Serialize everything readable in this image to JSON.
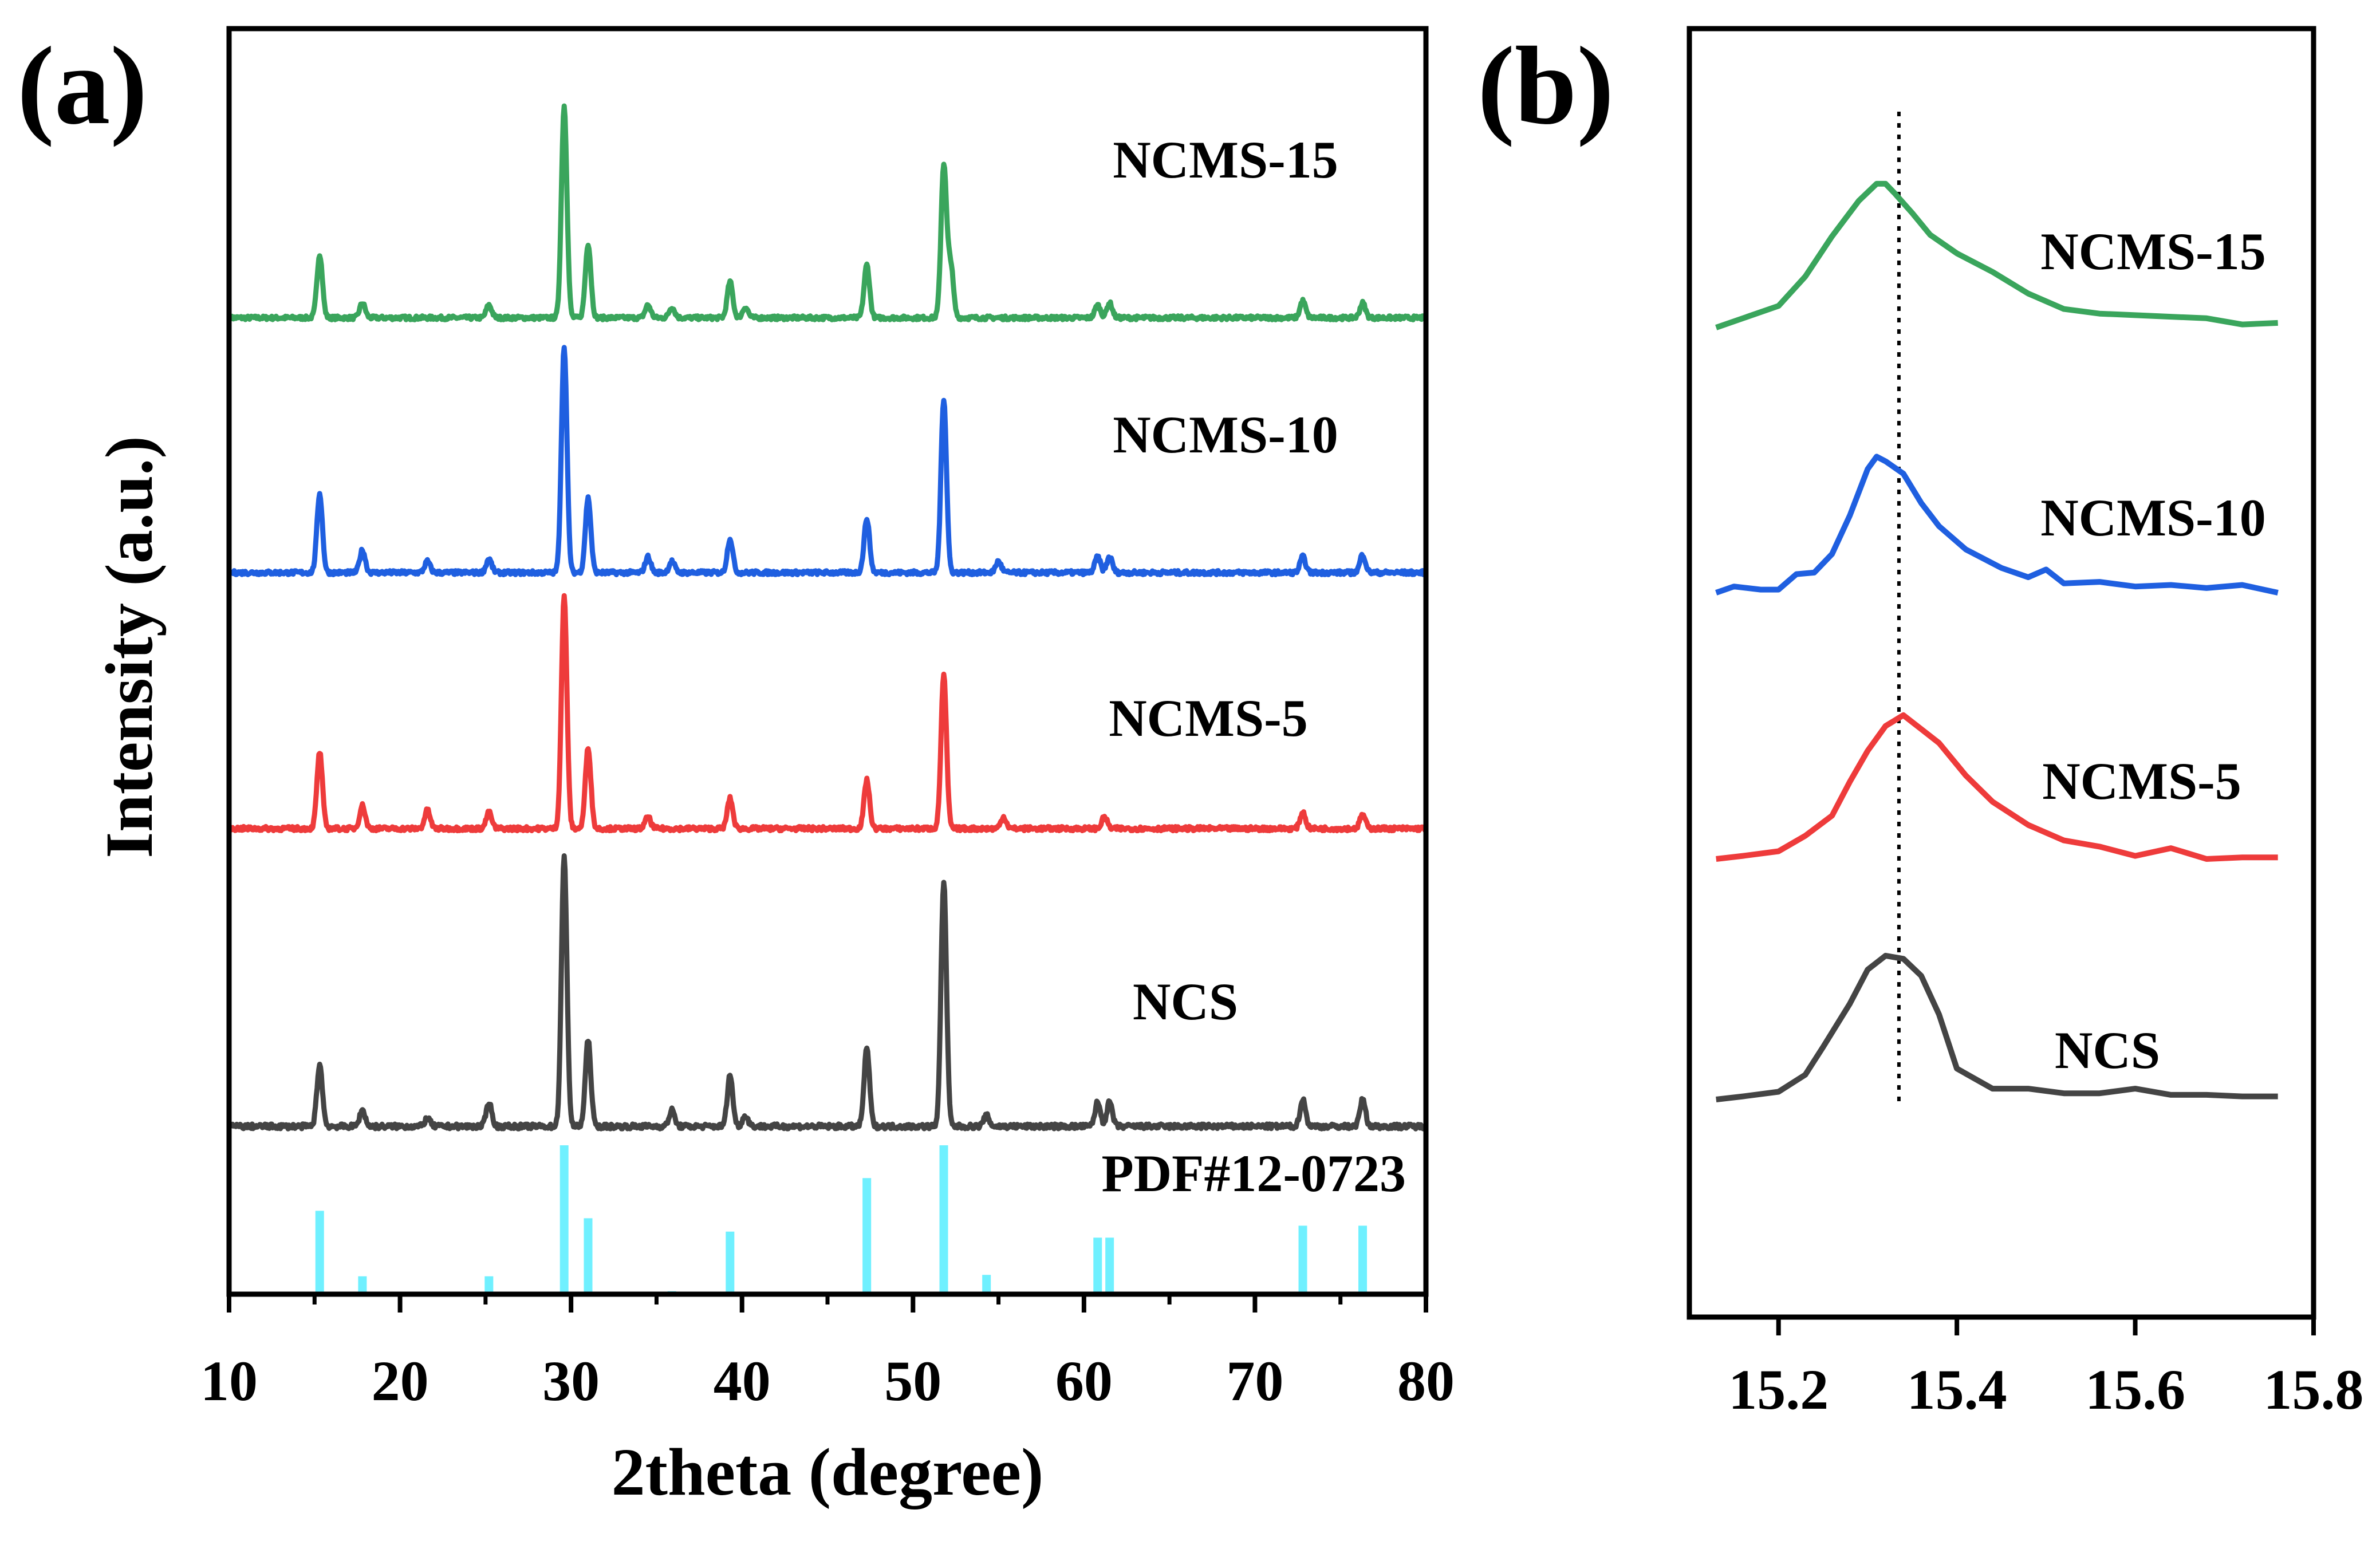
{
  "chart_data": [
    {
      "panel": "(a)",
      "type": "line",
      "xlabel": "2theta (degree)",
      "ylabel": "Intensity (a.u.)",
      "xlim": [
        10,
        80
      ],
      "xticks": [
        10,
        20,
        30,
        40,
        50,
        60,
        70,
        80
      ],
      "x_tick_labels": [
        "10",
        "20",
        "30",
        "40",
        "50",
        "60",
        "70",
        "80"
      ],
      "yticks_shown": false,
      "series": [
        {
          "name": "NCMS-15",
          "color": "#3aa55c",
          "peaks": [
            [
              15.3,
              0.3
            ],
            [
              17.8,
              0.07
            ],
            [
              25.2,
              0.06
            ],
            [
              29.6,
              1.0
            ],
            [
              31.0,
              0.35
            ],
            [
              34.5,
              0.06
            ],
            [
              35.9,
              0.05
            ],
            [
              39.3,
              0.17
            ],
            [
              40.2,
              0.05
            ],
            [
              47.3,
              0.25
            ],
            [
              51.8,
              0.72
            ],
            [
              52.2,
              0.25
            ],
            [
              60.8,
              0.06
            ],
            [
              61.5,
              0.07
            ],
            [
              72.8,
              0.08
            ],
            [
              76.3,
              0.07
            ]
          ]
        },
        {
          "name": "NCMS-10",
          "color": "#1f5fe0",
          "peaks": [
            [
              15.3,
              0.35
            ],
            [
              17.8,
              0.1
            ],
            [
              21.6,
              0.05
            ],
            [
              25.2,
              0.06
            ],
            [
              29.6,
              1.0
            ],
            [
              31.0,
              0.33
            ],
            [
              34.5,
              0.07
            ],
            [
              35.9,
              0.05
            ],
            [
              39.3,
              0.15
            ],
            [
              47.3,
              0.24
            ],
            [
              51.8,
              0.77
            ],
            [
              55.0,
              0.05
            ],
            [
              60.8,
              0.07
            ],
            [
              61.5,
              0.07
            ],
            [
              72.8,
              0.07
            ],
            [
              76.3,
              0.08
            ]
          ]
        },
        {
          "name": "NCMS-5",
          "color": "#ee3b3b",
          "peaks": [
            [
              15.3,
              0.33
            ],
            [
              17.8,
              0.1
            ],
            [
              21.6,
              0.08
            ],
            [
              25.2,
              0.07
            ],
            [
              29.6,
              1.0
            ],
            [
              31.0,
              0.35
            ],
            [
              34.5,
              0.05
            ],
            [
              39.3,
              0.13
            ],
            [
              47.3,
              0.21
            ],
            [
              51.8,
              0.66
            ],
            [
              55.3,
              0.05
            ],
            [
              61.2,
              0.05
            ],
            [
              72.8,
              0.07
            ],
            [
              76.3,
              0.06
            ]
          ]
        },
        {
          "name": "NCS",
          "color": "#444444",
          "peaks": [
            [
              15.3,
              0.23
            ],
            [
              17.8,
              0.06
            ],
            [
              21.6,
              0.03
            ],
            [
              25.2,
              0.09
            ],
            [
              29.6,
              1.0
            ],
            [
              31.0,
              0.32
            ],
            [
              35.9,
              0.06
            ],
            [
              39.3,
              0.19
            ],
            [
              40.2,
              0.04
            ],
            [
              47.3,
              0.29
            ],
            [
              51.8,
              0.91
            ],
            [
              54.3,
              0.04
            ],
            [
              60.8,
              0.09
            ],
            [
              61.5,
              0.09
            ],
            [
              72.8,
              0.1
            ],
            [
              76.3,
              0.1
            ]
          ]
        },
        {
          "name": "PDF#12-0723",
          "color": "#6ff0ff",
          "kind": "stick",
          "sticks": [
            [
              15.3,
              0.56
            ],
            [
              17.8,
              0.12
            ],
            [
              25.2,
              0.12
            ],
            [
              29.6,
              1.0
            ],
            [
              31.0,
              0.51
            ],
            [
              35.9,
              0.02
            ],
            [
              39.3,
              0.42
            ],
            [
              47.3,
              0.78
            ],
            [
              51.8,
              1.0
            ],
            [
              54.3,
              0.13
            ],
            [
              60.8,
              0.38
            ],
            [
              61.5,
              0.38
            ],
            [
              72.8,
              0.46
            ],
            [
              76.3,
              0.46
            ]
          ]
        }
      ]
    },
    {
      "panel": "(b)",
      "type": "line",
      "xlim": [
        15.1,
        15.8
      ],
      "xticks": [
        15.2,
        15.4,
        15.6,
        15.8
      ],
      "x_tick_labels": [
        "15.2",
        "15.4",
        "15.6",
        "15.8"
      ],
      "reference_line_x": 15.335,
      "series": [
        {
          "name": "NCMS-15",
          "color": "#3aa55c",
          "x": [
            15.13,
            15.16,
            15.2,
            15.23,
            15.26,
            15.29,
            15.31,
            15.32,
            15.33,
            15.35,
            15.37,
            15.4,
            15.44,
            15.48,
            15.52,
            15.56,
            15.6,
            15.64,
            15.68,
            15.72,
            15.76
          ],
          "y": [
            0.0,
            0.06,
            0.14,
            0.33,
            0.59,
            0.82,
            0.93,
            0.93,
            0.87,
            0.74,
            0.6,
            0.48,
            0.36,
            0.22,
            0.12,
            0.09,
            0.08,
            0.07,
            0.06,
            0.02,
            0.03
          ]
        },
        {
          "name": "NCMS-10",
          "color": "#1f5fe0",
          "x": [
            15.13,
            15.15,
            15.18,
            15.2,
            15.22,
            15.24,
            15.26,
            15.28,
            15.3,
            15.31,
            15.32,
            15.34,
            15.36,
            15.38,
            15.41,
            15.45,
            15.48,
            15.5,
            15.52,
            15.56,
            15.6,
            15.64,
            15.68,
            15.72,
            15.76
          ],
          "y": [
            0.0,
            0.04,
            0.02,
            0.02,
            0.12,
            0.13,
            0.25,
            0.5,
            0.8,
            0.88,
            0.85,
            0.77,
            0.58,
            0.43,
            0.28,
            0.16,
            0.1,
            0.15,
            0.06,
            0.07,
            0.04,
            0.05,
            0.03,
            0.05,
            0.0
          ]
        },
        {
          "name": "NCMS-5",
          "color": "#ee3b3b",
          "x": [
            15.13,
            15.16,
            15.2,
            15.23,
            15.26,
            15.28,
            15.3,
            15.32,
            15.34,
            15.36,
            15.38,
            15.41,
            15.44,
            15.48,
            15.52,
            15.56,
            15.6,
            15.64,
            15.68,
            15.72,
            15.76
          ],
          "y": [
            0.0,
            0.02,
            0.05,
            0.15,
            0.28,
            0.5,
            0.7,
            0.86,
            0.93,
            0.84,
            0.75,
            0.54,
            0.37,
            0.22,
            0.12,
            0.08,
            0.02,
            0.07,
            0.0,
            0.01,
            0.01
          ]
        },
        {
          "name": "NCS",
          "color": "#444444",
          "x": [
            15.13,
            15.16,
            15.2,
            15.23,
            15.25,
            15.28,
            15.3,
            15.32,
            15.34,
            15.36,
            15.38,
            15.4,
            15.44,
            15.48,
            15.52,
            15.56,
            15.6,
            15.64,
            15.68,
            15.72,
            15.76
          ],
          "y": [
            0.0,
            0.02,
            0.05,
            0.16,
            0.34,
            0.62,
            0.84,
            0.93,
            0.91,
            0.8,
            0.55,
            0.2,
            0.07,
            0.07,
            0.04,
            0.04,
            0.07,
            0.03,
            0.03,
            0.02,
            0.02
          ]
        }
      ]
    }
  ]
}
